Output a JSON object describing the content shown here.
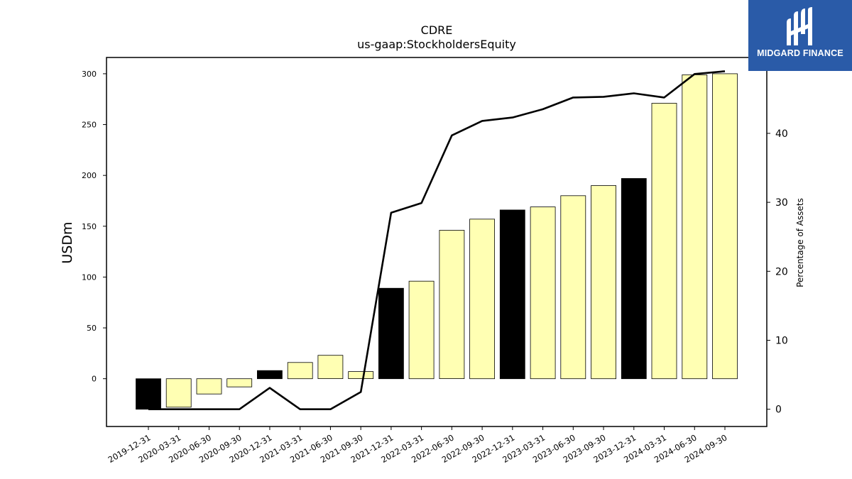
{
  "chart_data": {
    "type": "bar",
    "title": "CDRE",
    "subtitle": "us-gaap:StockholdersEquity",
    "ylabel": "USDm",
    "ylabel_right": "Percentage of Assets",
    "ylim": [
      -47,
      316
    ],
    "ylim_right": [
      -2.5,
      51
    ],
    "yticks": [
      0,
      50,
      100,
      150,
      200,
      250,
      300
    ],
    "yticks_right": [
      0,
      10,
      20,
      30,
      40
    ],
    "grid": false,
    "categories": [
      "2019-12-31",
      "2020-03-31",
      "2020-06-30",
      "2020-09-30",
      "2020-12-31",
      "2021-03-31",
      "2021-06-30",
      "2021-09-30",
      "2021-12-31",
      "2022-03-31",
      "2022-06-30",
      "2022-09-30",
      "2022-12-31",
      "2023-03-31",
      "2023-06-30",
      "2023-09-30",
      "2023-12-31",
      "2024-03-31",
      "2024-06-30",
      "2024-09-30"
    ],
    "series": [
      {
        "kind": "bar",
        "values": [
          -30,
          -28,
          -15,
          -8,
          8,
          16,
          23,
          7,
          89,
          96,
          146,
          157,
          166,
          169,
          180,
          190,
          197,
          271,
          299,
          300
        ],
        "colors": [
          "#000000",
          "#ffffb3",
          "#ffffb3",
          "#ffffb3",
          "#000000",
          "#ffffb3",
          "#ffffb3",
          "#ffffb3",
          "#000000",
          "#ffffb3",
          "#ffffb3",
          "#ffffb3",
          "#000000",
          "#ffffb3",
          "#ffffb3",
          "#ffffb3",
          "#000000",
          "#ffffb3",
          "#ffffb3",
          "#ffffb3"
        ]
      },
      {
        "kind": "line",
        "axis": "right",
        "color": "#000000",
        "values": [
          0,
          0,
          0,
          0,
          3.1,
          0,
          0,
          2.5,
          28.5,
          29.9,
          39.7,
          41.8,
          42.3,
          43.5,
          45.2,
          45.3,
          45.8,
          45.2,
          48.6,
          49.0
        ]
      }
    ]
  },
  "logo": {
    "text": "MIDGARD FINANCE"
  }
}
